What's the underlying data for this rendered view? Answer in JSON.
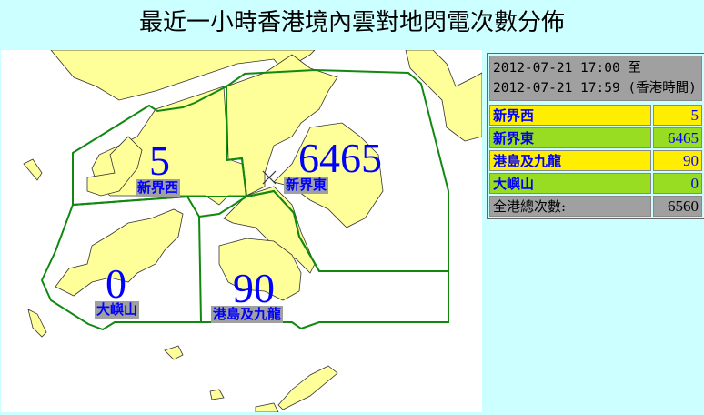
{
  "title": "最近一小時香港境內雲對地閃電次數分佈",
  "period": {
    "line1": "2012-07-21 17:00 至",
    "line2": "2012-07-21 17:59 (香港時間)"
  },
  "colors": {
    "yellow_row": "#ffee00",
    "green_row": "#99dd22",
    "total_row": "#a0a0a0",
    "land": "#ffff99",
    "boundary": "#118811",
    "text": "#0000ff"
  },
  "regions": [
    {
      "name": "新界西",
      "count": "5",
      "row_color": "#ffee00"
    },
    {
      "name": "新界東",
      "count": "6465",
      "row_color": "#99dd22"
    },
    {
      "name": "港島及九龍",
      "count": "90",
      "row_color": "#ffee00"
    },
    {
      "name": "大嶼山",
      "count": "0",
      "row_color": "#99dd22"
    }
  ],
  "total": {
    "label": "全港總次數:",
    "count": "6560"
  },
  "map": {
    "marker_icon": "cross-marker-icon"
  }
}
